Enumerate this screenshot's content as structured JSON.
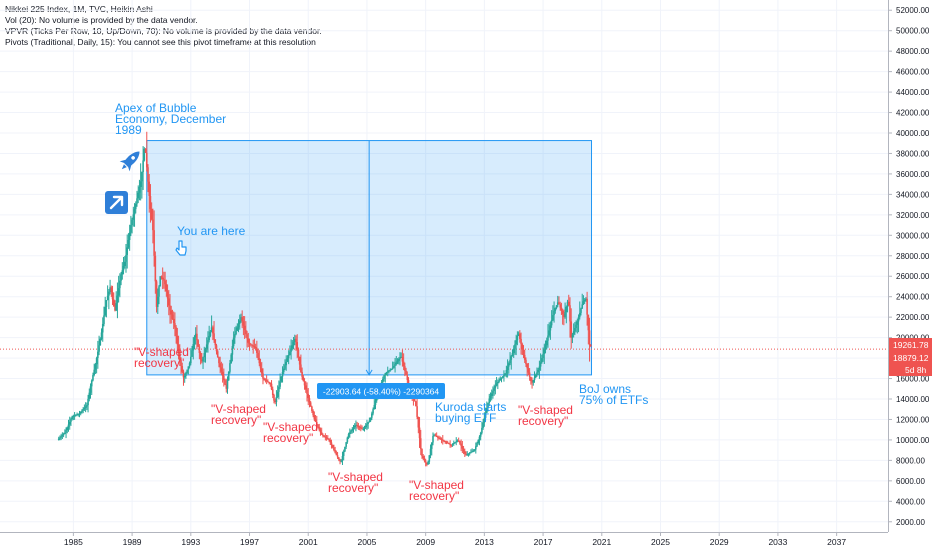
{
  "legend": {
    "title": "Nikkei 225 Index, 1M, TVC, Heikin Ashi",
    "vol": "Vol (20): No volume is provided by the data vendor.",
    "vpvr": "VPVR (Ticks Per Row, 10, Up/Down, 70): No volume is provided by the data vendor.",
    "pivots": "Pivots (Traditional, Daily, 15): You cannot see this pivot timeframe at this resolution"
  },
  "price_tags": {
    "current": "19261.78",
    "line": "18879.12",
    "countdown": "5d 8h"
  },
  "measure_label": "-22903.64 (-58.40%) -2290364",
  "annotations": {
    "apex": [
      "Apex of Bubble",
      "Economy, December",
      "1989"
    ],
    "you_are_here": "You are here",
    "v1": [
      "\"V-shaped",
      "recovery\""
    ],
    "v2": [
      "\"V-shaped",
      "recovery\""
    ],
    "v3": [
      "\"V-shaped",
      "recovery\""
    ],
    "v4": [
      "\"V-shaped",
      "recovery\""
    ],
    "v5": [
      "\"V-shaped",
      "recovery\""
    ],
    "v6": [
      "\"V-shaped",
      "recovery\""
    ],
    "kuroda": [
      "Kuroda starts",
      "buying ETF"
    ],
    "boj": [
      "BoJ owns",
      "75% of ETFs"
    ]
  },
  "chart_data": {
    "type": "line",
    "chart_style": "heikin-ashi candlesticks",
    "y_axis_labels": [
      "2000.00",
      "4000.00",
      "6000.00",
      "8000.00",
      "10000.00",
      "12000.00",
      "14000.00",
      "16000.00",
      "18000.00",
      "20000.00",
      "22000.00",
      "24000.00",
      "26000.00",
      "28000.00",
      "30000.00",
      "32000.00",
      "34000.00",
      "36000.00",
      "38000.00",
      "40000.00",
      "42000.00",
      "44000.00",
      "46000.00",
      "48000.00",
      "50000.00",
      "52000.00"
    ],
    "ylim": [
      1000,
      53000
    ],
    "y_ticks": [
      2000,
      4000,
      6000,
      8000,
      10000,
      12000,
      14000,
      16000,
      18000,
      20000,
      22000,
      24000,
      26000,
      28000,
      30000,
      32000,
      34000,
      36000,
      38000,
      40000,
      42000,
      44000,
      46000,
      48000,
      50000,
      52000
    ],
    "x_axis_labels": [
      "1985",
      "1989",
      "1993",
      "1997",
      "2001",
      "2005",
      "2009",
      "2013",
      "2017",
      "2021",
      "2025",
      "2029",
      "2033",
      "2037"
    ],
    "x_ticks": [
      1985,
      1989,
      1993,
      1997,
      2001,
      2005,
      2009,
      2013,
      2017,
      2021,
      2025,
      2029,
      2033,
      2037
    ],
    "xlim": [
      1980,
      2040.5
    ],
    "up_color": "#26a69a",
    "down_color": "#ef5350",
    "price_line_color": "#ef5350",
    "measure_color": "#2196f3",
    "annotation_blue": "#2196f3",
    "annotation_red": "#f23645",
    "price_line_value": 18879.12,
    "last_value": 19261.78,
    "measure_box": {
      "x_start": 1990.0,
      "x_end": 2020.3,
      "y_top": 39260,
      "y_bottom": 16356
    },
    "series": [
      {
        "points": [
          [
            1984.0,
            10000
          ],
          [
            1984.5,
            10700
          ],
          [
            1985.0,
            12300
          ],
          [
            1985.5,
            12600
          ],
          [
            1986.0,
            13400
          ],
          [
            1986.3,
            15600
          ],
          [
            1986.6,
            17500
          ],
          [
            1987.0,
            20500
          ],
          [
            1987.3,
            23500
          ],
          [
            1987.6,
            25000
          ],
          [
            1987.9,
            22500
          ],
          [
            1988.3,
            26000
          ],
          [
            1988.6,
            27500
          ],
          [
            1989.0,
            31000
          ],
          [
            1989.4,
            33500
          ],
          [
            1989.7,
            35500
          ],
          [
            1989.95,
            38900
          ],
          [
            1990.3,
            33000
          ],
          [
            1990.5,
            30500
          ],
          [
            1990.75,
            23000
          ],
          [
            1991.0,
            26000
          ],
          [
            1991.3,
            25500
          ],
          [
            1991.6,
            23000
          ],
          [
            1992.0,
            21000
          ],
          [
            1992.3,
            18000
          ],
          [
            1992.6,
            16000
          ],
          [
            1993.0,
            17500
          ],
          [
            1993.4,
            20500
          ],
          [
            1993.8,
            17500
          ],
          [
            1994.0,
            18500
          ],
          [
            1994.5,
            21000
          ],
          [
            1995.0,
            17500
          ],
          [
            1995.5,
            15000
          ],
          [
            1996.0,
            20000
          ],
          [
            1996.5,
            22000
          ],
          [
            1997.0,
            19500
          ],
          [
            1997.5,
            19000
          ],
          [
            1998.0,
            16000
          ],
          [
            1998.5,
            15500
          ],
          [
            1998.8,
            13500
          ],
          [
            1999.3,
            16500
          ],
          [
            1999.8,
            18500
          ],
          [
            2000.2,
            20000
          ],
          [
            2000.6,
            16500
          ],
          [
            2001.0,
            14500
          ],
          [
            2001.5,
            12000
          ],
          [
            2002.0,
            10500
          ],
          [
            2002.5,
            10000
          ],
          [
            2003.0,
            8500
          ],
          [
            2003.3,
            7800
          ],
          [
            2003.8,
            10500
          ],
          [
            2004.3,
            11500
          ],
          [
            2004.8,
            11000
          ],
          [
            2005.3,
            12000
          ],
          [
            2005.8,
            14500
          ],
          [
            2006.3,
            16500
          ],
          [
            2006.8,
            17000
          ],
          [
            2007.4,
            18200
          ],
          [
            2007.9,
            15500
          ],
          [
            2008.4,
            13500
          ],
          [
            2008.8,
            8500
          ],
          [
            2009.2,
            7500
          ],
          [
            2009.6,
            10500
          ],
          [
            2010.2,
            10000
          ],
          [
            2010.8,
            9500
          ],
          [
            2011.3,
            10000
          ],
          [
            2011.8,
            8500
          ],
          [
            2012.4,
            9000
          ],
          [
            2012.8,
            10500
          ],
          [
            2013.4,
            14000
          ],
          [
            2013.9,
            15500
          ],
          [
            2014.5,
            16500
          ],
          [
            2015.0,
            18500
          ],
          [
            2015.4,
            20500
          ],
          [
            2015.8,
            18000
          ],
          [
            2016.3,
            15500
          ],
          [
            2016.8,
            17000
          ],
          [
            2017.3,
            19500
          ],
          [
            2017.8,
            22500
          ],
          [
            2018.1,
            23500
          ],
          [
            2018.5,
            22000
          ],
          [
            2018.8,
            23800
          ],
          [
            2019.0,
            20000
          ],
          [
            2019.4,
            21500
          ],
          [
            2019.8,
            23500
          ],
          [
            2020.0,
            23800
          ],
          [
            2020.15,
            21000
          ],
          [
            2020.25,
            19261.78
          ]
        ]
      }
    ]
  }
}
